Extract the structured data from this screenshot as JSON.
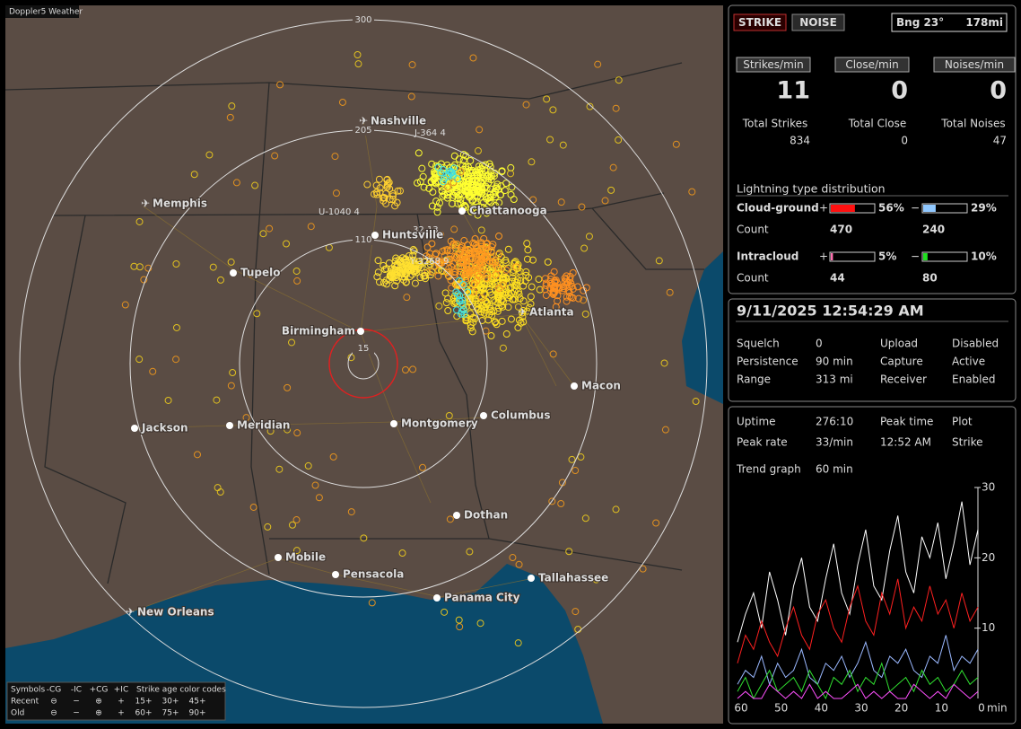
{
  "app_title": "Doppler5 Weather",
  "map": {
    "cities": [
      "Nashville",
      "Memphis",
      "Chattanooga",
      "Huntsville",
      "Tupelo",
      "Birmingham",
      "Atlanta",
      "Macon",
      "Jackson",
      "Meridian",
      "Montgomery",
      "Columbus",
      "Dothan",
      "Mobile",
      "Pensacola",
      "Tallahassee",
      "Panama City",
      "New Orleans"
    ],
    "range_rings": [
      "300",
      "205",
      "110",
      "15"
    ],
    "tracks": [
      "J-364 4",
      "U-1040 4",
      "Y-3268 9",
      "32 13"
    ]
  },
  "legend": {
    "symbols_label": "Symbols",
    "symbol_headers": [
      "-CG",
      "-IC",
      "+CG",
      "+IC"
    ],
    "age_label": "Strike age color codes",
    "rows": [
      {
        "name": "Recent",
        "symbols": [
          "⊖",
          "−",
          "⊕",
          "+"
        ],
        "ages": [
          "15+",
          "30+",
          "45+"
        ]
      },
      {
        "name": "Old",
        "symbols": [
          "⊖",
          "−",
          "⊕",
          "+"
        ],
        "ages": [
          "60+",
          "75+",
          "90+"
        ]
      }
    ]
  },
  "status": {
    "strike_button": "STRIKE",
    "noise_button": "NOISE",
    "bearing": "Bng 23°",
    "distance": "178mi"
  },
  "rates": [
    {
      "label": "Strikes/min",
      "value": 11,
      "total_label": "Total Strikes",
      "total": 834
    },
    {
      "label": "Close/min",
      "value": 0,
      "total_label": "Total Close",
      "total": 0
    },
    {
      "label": "Noises/min",
      "value": 0,
      "total_label": "Total Noises",
      "total": 47
    }
  ],
  "distribution": {
    "title": "Lightning type distribution",
    "count_label": "Count",
    "plus_sign": "+",
    "minus_sign": "−",
    "types": [
      {
        "name": "Cloud-ground",
        "plus": {
          "value": 56,
          "label": "56%"
        },
        "minus": {
          "value": 29,
          "label": "29%"
        },
        "plus_count": 470,
        "minus_count": 240
      },
      {
        "name": "Intracloud",
        "plus": {
          "value": 5,
          "label": "5%"
        },
        "minus": {
          "value": 10,
          "label": "10%"
        },
        "plus_count": 44,
        "minus_count": 80
      }
    ]
  },
  "settings": {
    "datetime": "9/11/2025 12:54:29 AM",
    "rows": [
      [
        "Squelch",
        "0",
        "Upload",
        "Disabled"
      ],
      [
        "Persistence",
        "90 min",
        "Capture",
        "Active"
      ],
      [
        "Range",
        "313 mi",
        "Receiver",
        "Enabled"
      ]
    ]
  },
  "stats": {
    "rows": [
      [
        "Uptime",
        "276:10",
        "Peak time",
        "Plot"
      ],
      [
        "Peak rate",
        "33/min",
        "12:52 AM",
        "Strike"
      ]
    ],
    "trend_label": "Trend graph",
    "trend_window": "60 min"
  },
  "trend_graph": {
    "type": "line",
    "xlim": [
      60,
      0
    ],
    "ylim": [
      0,
      30
    ],
    "xticks": [
      60,
      50,
      40,
      30,
      20,
      10,
      0
    ],
    "x_unit": "min",
    "yticks": [
      10,
      20,
      30
    ],
    "x": [
      60,
      58,
      56,
      54,
      52,
      50,
      48,
      46,
      44,
      42,
      40,
      38,
      36,
      34,
      32,
      30,
      28,
      26,
      24,
      22,
      20,
      18,
      16,
      14,
      12,
      10,
      8,
      6,
      4,
      2,
      0
    ],
    "series": [
      {
        "color": "#ffffff",
        "values": [
          8,
          12,
          15,
          10,
          18,
          14,
          9,
          16,
          20,
          13,
          11,
          17,
          22,
          15,
          12,
          19,
          24,
          16,
          14,
          21,
          26,
          18,
          15,
          23,
          20,
          25,
          17,
          22,
          28,
          19,
          24
        ]
      },
      {
        "color": "#ff2020",
        "values": [
          5,
          9,
          7,
          11,
          8,
          6,
          10,
          13,
          9,
          7,
          12,
          14,
          10,
          8,
          13,
          16,
          11,
          9,
          15,
          12,
          17,
          10,
          13,
          11,
          16,
          12,
          14,
          10,
          15,
          11,
          13
        ]
      },
      {
        "color": "#9ab8ff",
        "values": [
          2,
          4,
          3,
          6,
          2,
          5,
          3,
          4,
          7,
          3,
          2,
          5,
          4,
          6,
          3,
          5,
          8,
          4,
          3,
          6,
          5,
          7,
          4,
          3,
          6,
          5,
          9,
          4,
          6,
          5,
          7
        ]
      },
      {
        "color": "#30e030",
        "values": [
          1,
          3,
          0,
          2,
          4,
          1,
          2,
          3,
          1,
          4,
          2,
          0,
          3,
          2,
          4,
          1,
          3,
          2,
          5,
          1,
          2,
          3,
          1,
          4,
          2,
          3,
          1,
          2,
          4,
          2,
          3
        ]
      },
      {
        "color": "#ff50ff",
        "values": [
          0,
          1,
          0,
          0,
          2,
          1,
          0,
          1,
          0,
          2,
          0,
          1,
          0,
          0,
          1,
          2,
          0,
          1,
          0,
          1,
          0,
          0,
          2,
          1,
          0,
          1,
          0,
          2,
          1,
          0,
          1
        ]
      }
    ]
  }
}
